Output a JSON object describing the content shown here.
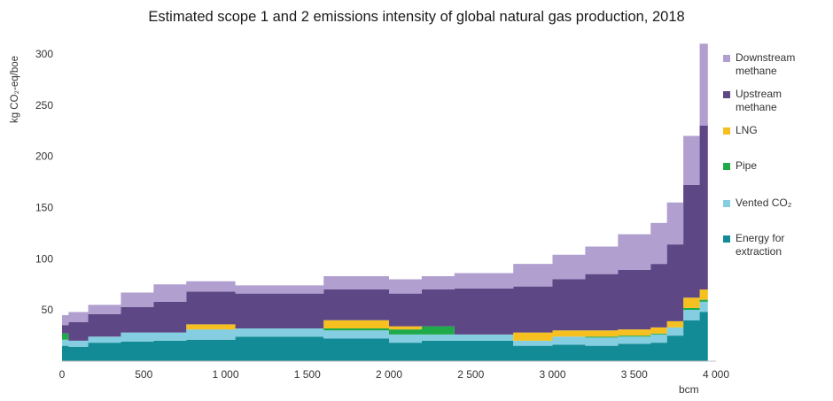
{
  "chart_data": {
    "type": "area",
    "title": "Estimated scope 1 and 2 emissions intensity of global natural gas production, 2018",
    "ylabel": "kg CO₂-eq/boe",
    "xlabel": "bcm",
    "xlim": [
      0,
      4000
    ],
    "ylim": [
      0,
      300
    ],
    "x_ticks": [
      "0",
      "500",
      "1 000",
      "1 500",
      "2 000",
      "2 500",
      "3 000",
      "3 500",
      "4 000"
    ],
    "y_ticks": [
      "50",
      "100",
      "150",
      "200",
      "250",
      "300"
    ],
    "series": [
      {
        "name": "Downstream methane",
        "color": "#b09fcf"
      },
      {
        "name": "Upstream methane",
        "color": "#5e4785"
      },
      {
        "name": "LNG",
        "color": "#f5c020"
      },
      {
        "name": "Pipe",
        "color": "#1faa4a"
      },
      {
        "name": "Vented CO₂",
        "color": "#85cde0"
      },
      {
        "name": "Energy for extraction",
        "color": "#128b96"
      }
    ],
    "x": [
      40,
      160,
      360,
      560,
      760,
      1060,
      1600,
      2000,
      2200,
      2400,
      2760,
      3000,
      3200,
      3400,
      3600,
      3700,
      3800,
      3900,
      3950
    ],
    "stacks": {
      "Energy for extraction": [
        15,
        14,
        18,
        19,
        20,
        21,
        24,
        22,
        18,
        20,
        20,
        15,
        16,
        15,
        17,
        18,
        25,
        40,
        48
      ],
      "Vented CO₂": [
        6,
        6,
        6,
        9,
        8,
        10,
        8,
        8,
        8,
        6,
        6,
        5,
        8,
        8,
        7,
        8,
        8,
        10,
        10
      ],
      "Pipe": [
        6,
        0,
        0,
        0,
        0,
        0,
        0,
        2,
        5,
        8,
        0,
        0,
        0,
        1,
        1,
        1,
        0,
        2,
        2
      ],
      "LNG": [
        0,
        0,
        0,
        0,
        0,
        5,
        0,
        8,
        3,
        0,
        0,
        8,
        6,
        6,
        6,
        6,
        6,
        10,
        10
      ],
      "Upstream methane": [
        8,
        18,
        22,
        25,
        30,
        32,
        34,
        30,
        32,
        36,
        45,
        45,
        50,
        55,
        58,
        62,
        75,
        110,
        160
      ],
      "Downstream methane": [
        10,
        10,
        9,
        14,
        17,
        10,
        8,
        13,
        14,
        13,
        15,
        22,
        24,
        27,
        35,
        40,
        41,
        48,
        80
      ]
    },
    "grid": false,
    "legend_position": "right"
  }
}
